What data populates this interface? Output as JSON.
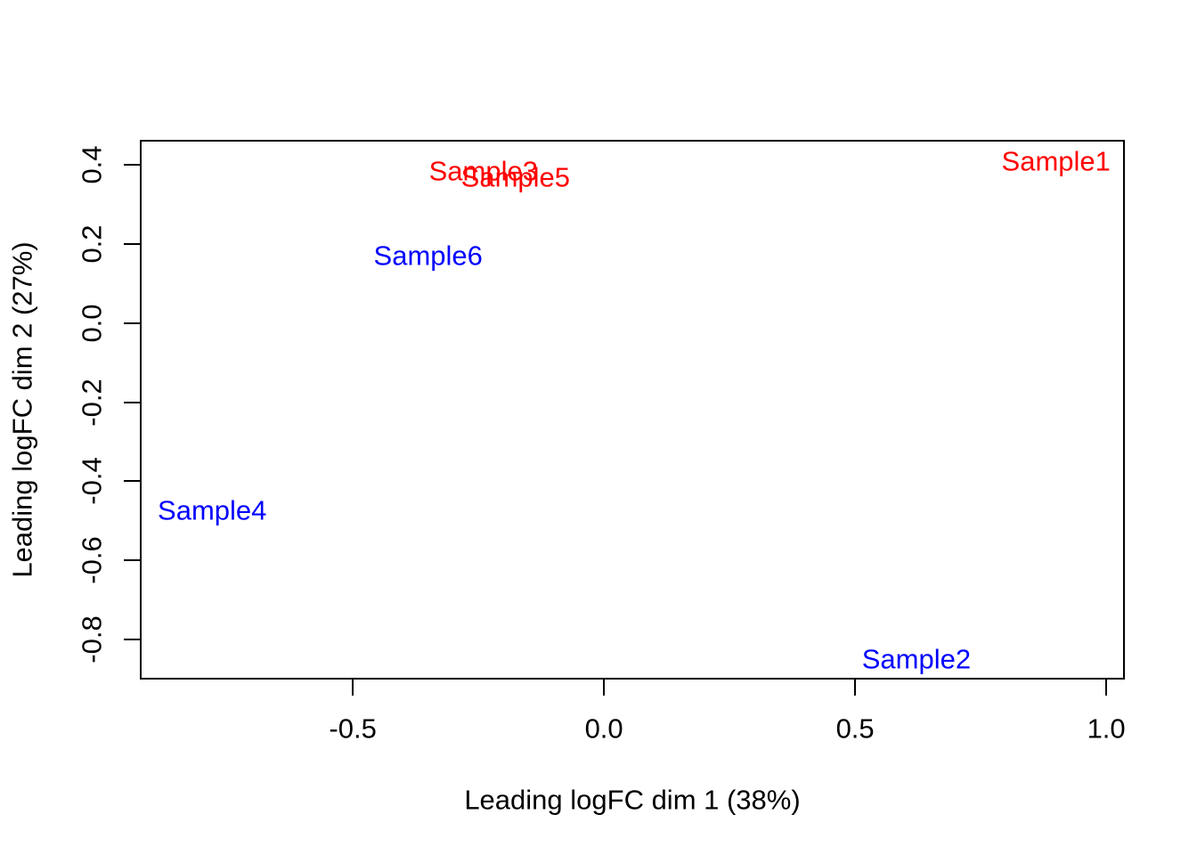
{
  "figure": {
    "background": "#FFFFFF"
  },
  "chart_data": {
    "type": "scatter",
    "title": "",
    "xlabel": "Leading logFC dim 1 (38%)",
    "ylabel": "Leading logFC dim 2 (27%)",
    "xlim": [
      -0.924,
      1.037
    ],
    "ylim": [
      -0.902,
      0.464
    ],
    "grid": false,
    "point_style": "text-label",
    "x_ticks": [
      {
        "value": -0.5,
        "label": "-0.5"
      },
      {
        "value": 0.0,
        "label": "0.0"
      },
      {
        "value": 0.5,
        "label": "0.5"
      },
      {
        "value": 1.0,
        "label": "1.0"
      }
    ],
    "y_ticks": [
      {
        "value": 0.4,
        "label": "0.4"
      },
      {
        "value": 0.2,
        "label": "0.2"
      },
      {
        "value": 0.0,
        "label": "0.0"
      },
      {
        "value": -0.2,
        "label": "-0.2"
      },
      {
        "value": -0.4,
        "label": "-0.4"
      },
      {
        "value": -0.6,
        "label": "-0.6"
      },
      {
        "value": -0.8,
        "label": "-0.8"
      }
    ],
    "points": [
      {
        "label": "Sample1",
        "x": 0.9,
        "y": 0.41,
        "color": "#FF0000"
      },
      {
        "label": "Sample2",
        "x": 0.622,
        "y": -0.851,
        "color": "#0000FF"
      },
      {
        "label": "Sample3",
        "x": -0.24,
        "y": 0.385,
        "color": "#FF0000"
      },
      {
        "label": "Sample4",
        "x": -0.78,
        "y": -0.474,
        "color": "#0000FF"
      },
      {
        "label": "Sample5",
        "x": -0.176,
        "y": 0.37,
        "color": "#FF0000"
      },
      {
        "label": "Sample6",
        "x": -0.35,
        "y": 0.17,
        "color": "#0000FF"
      }
    ],
    "colors": {
      "group1": "#FF0000",
      "group2": "#0000FF",
      "axis": "#000000",
      "background": "#FFFFFF"
    }
  }
}
